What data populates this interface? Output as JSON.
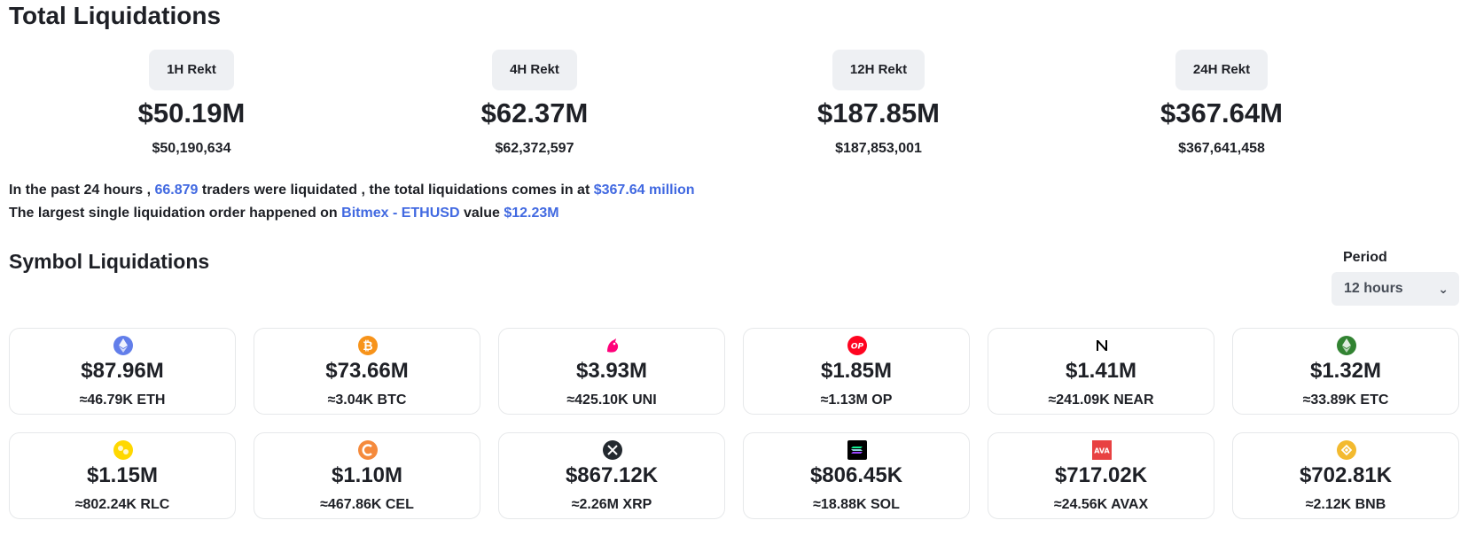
{
  "title": "Total Liquidations",
  "summary": [
    {
      "label": "1H Rekt",
      "value": "$50.19M",
      "exact": "$50,190,634"
    },
    {
      "label": "4H Rekt",
      "value": "$62.37M",
      "exact": "$62,372,597"
    },
    {
      "label": "12H Rekt",
      "value": "$187.85M",
      "exact": "$187,853,001"
    },
    {
      "label": "24H Rekt",
      "value": "$367.64M",
      "exact": "$367,641,458"
    }
  ],
  "info": {
    "line1_a": "In the past 24 hours , ",
    "traders": "66.879",
    "line1_b": " traders were liquidated , the total liquidations comes in at ",
    "total": "$367.64 million",
    "line2_a": "The largest single liquidation order happened on ",
    "exchange": "Bitmex - ETHUSD",
    "line2_b": " value ",
    "largest": "$12.23M"
  },
  "symbols": {
    "title": "Symbol Liquidations",
    "period_label": "Period",
    "period_value": "12 hours",
    "cards": [
      {
        "icon": "eth-icon",
        "color": "#627eea",
        "value": "$87.96M",
        "amount": "≈46.79K ETH"
      },
      {
        "icon": "btc-icon",
        "color": "#f7931a",
        "value": "$73.66M",
        "amount": "≈3.04K BTC"
      },
      {
        "icon": "uni-icon",
        "color": "#ff007a",
        "value": "$3.93M",
        "amount": "≈425.10K UNI"
      },
      {
        "icon": "op-icon",
        "color": "#ff0420",
        "value": "$1.85M",
        "amount": "≈1.13M OP"
      },
      {
        "icon": "near-icon",
        "color": "#000000",
        "value": "$1.41M",
        "amount": "≈241.09K NEAR"
      },
      {
        "icon": "etc-icon",
        "color": "#328332",
        "value": "$1.32M",
        "amount": "≈33.89K ETC"
      },
      {
        "icon": "rlc-icon",
        "color": "#ffd800",
        "value": "$1.15M",
        "amount": "≈802.24K RLC"
      },
      {
        "icon": "cel-icon",
        "color": "#f58a3c",
        "value": "$1.10M",
        "amount": "≈467.86K CEL"
      },
      {
        "icon": "xrp-icon",
        "color": "#23292f",
        "value": "$867.12K",
        "amount": "≈2.26M XRP"
      },
      {
        "icon": "sol-icon",
        "color": "#000000",
        "value": "$806.45K",
        "amount": "≈18.88K SOL"
      },
      {
        "icon": "avax-icon",
        "color": "#e84142",
        "value": "$717.02K",
        "amount": "≈24.56K AVAX"
      },
      {
        "icon": "bnb-icon",
        "color": "#f3ba2f",
        "value": "$702.81K",
        "amount": "≈2.12K BNB"
      }
    ]
  }
}
